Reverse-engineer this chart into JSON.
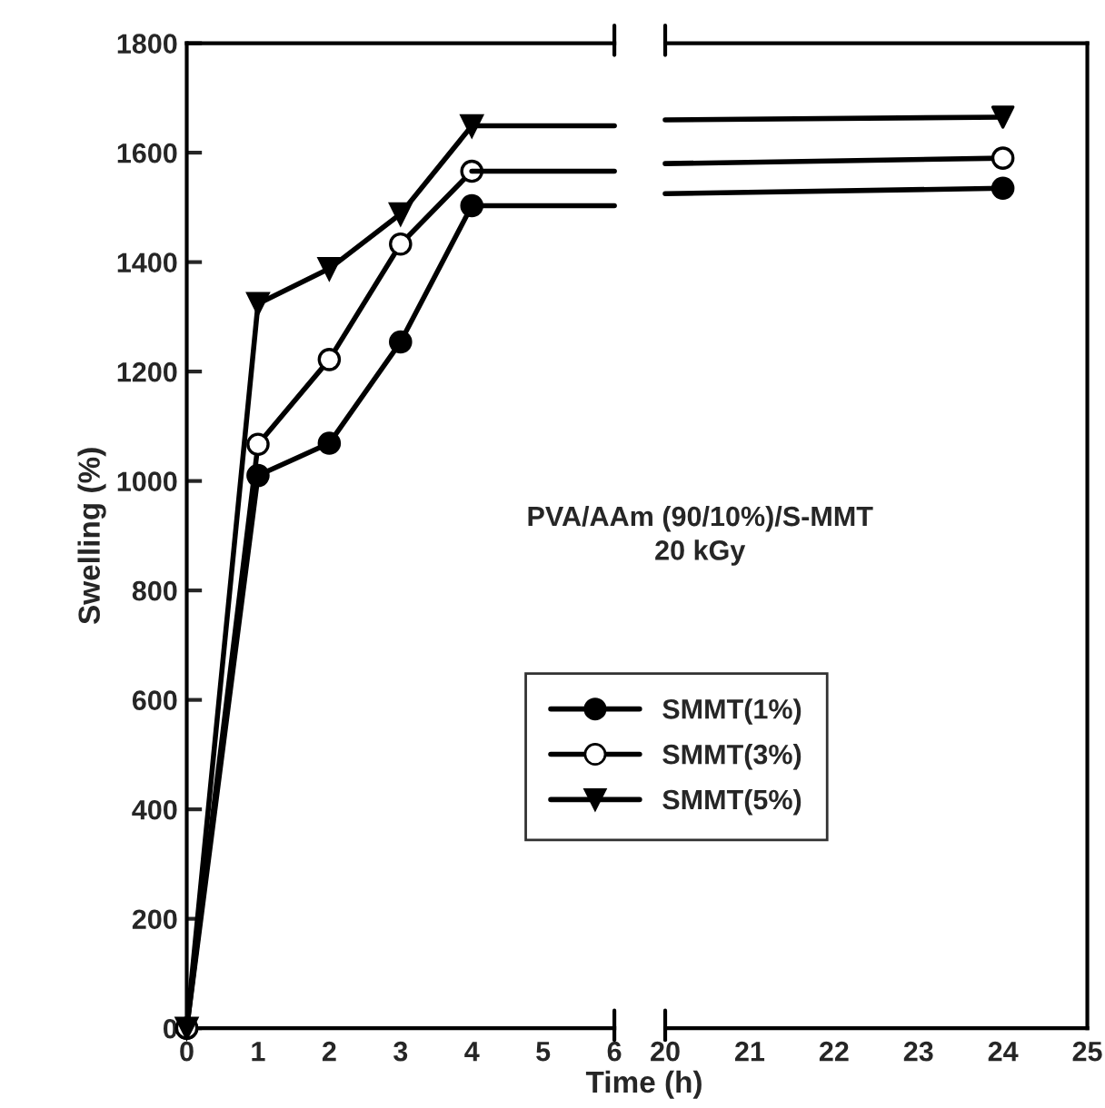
{
  "chart_data": [
    {
      "type": "line",
      "xlabel": "Time (h)",
      "ylabel": "Swelling (%)",
      "xlim": [
        0,
        6
      ],
      "xticks": [
        0,
        1,
        2,
        3,
        4,
        5,
        6
      ],
      "ylim": [
        0,
        1800
      ],
      "yticks": [
        0,
        200,
        400,
        600,
        800,
        1000,
        1200,
        1400,
        1600,
        1800
      ],
      "legend": "bottom right",
      "grid": false,
      "annotations": [
        "PVA/AAm (90/10%)/S-MMT\n20 kGy"
      ],
      "series": [
        {
          "name": "SMMT(1%)",
          "color": "#000000",
          "marker": "circle",
          "x": [
            0,
            1,
            2,
            3,
            4
          ],
          "values": [
            0,
            1010,
            1069,
            1254,
            1503
          ]
        },
        {
          "name": "SMMT(3%)",
          "color": "#ffffff",
          "marker": "circle",
          "x": [
            0,
            1,
            2,
            3,
            4
          ],
          "values": [
            0,
            1067,
            1222,
            1433,
            1566
          ]
        },
        {
          "name": "SMMT(5%)",
          "color": "#000000",
          "marker": "triangle",
          "x": [
            0,
            1,
            2,
            3,
            4
          ],
          "values": [
            0,
            1324,
            1388,
            1488,
            1649
          ]
        },
        {
          "color": "#000000",
          "marker": "none",
          "x": [
            4,
            6
          ],
          "values": [
            1503,
            1503
          ]
        },
        {
          "color": "#000000",
          "marker": "none",
          "x": [
            4,
            6
          ],
          "values": [
            1566,
            1566
          ]
        },
        {
          "color": "#000000",
          "marker": "none",
          "x": [
            4,
            6
          ],
          "values": [
            1649,
            1649
          ]
        }
      ]
    },
    {
      "type": "line",
      "xlim": [
        20,
        25
      ],
      "xticks": [
        20,
        21,
        22,
        23,
        24,
        25
      ],
      "ylim": [
        0,
        1800
      ],
      "tick_labels": "x",
      "grid": false,
      "series": [
        {
          "color": "#000000",
          "marker": "none",
          "x": [
            20,
            24
          ],
          "values": [
            1525,
            1535
          ]
        },
        {
          "color": "#000000",
          "marker": "none",
          "x": [
            20,
            24
          ],
          "values": [
            1580,
            1590
          ]
        },
        {
          "color": "#000000",
          "marker": "none",
          "x": [
            20,
            24
          ],
          "values": [
            1660,
            1665
          ]
        },
        {
          "type": "scatter",
          "color": "#000000",
          "marker": "circle",
          "x": [
            24
          ],
          "values": [
            1535
          ]
        },
        {
          "type": "scatter",
          "color": "#ffffff",
          "marker": "circle",
          "x": [
            24
          ],
          "values": [
            1590
          ]
        },
        {
          "type": "scatter",
          "color": "#000000",
          "marker": "triangle",
          "x": [
            24
          ],
          "values": [
            1665
          ]
        }
      ]
    }
  ]
}
